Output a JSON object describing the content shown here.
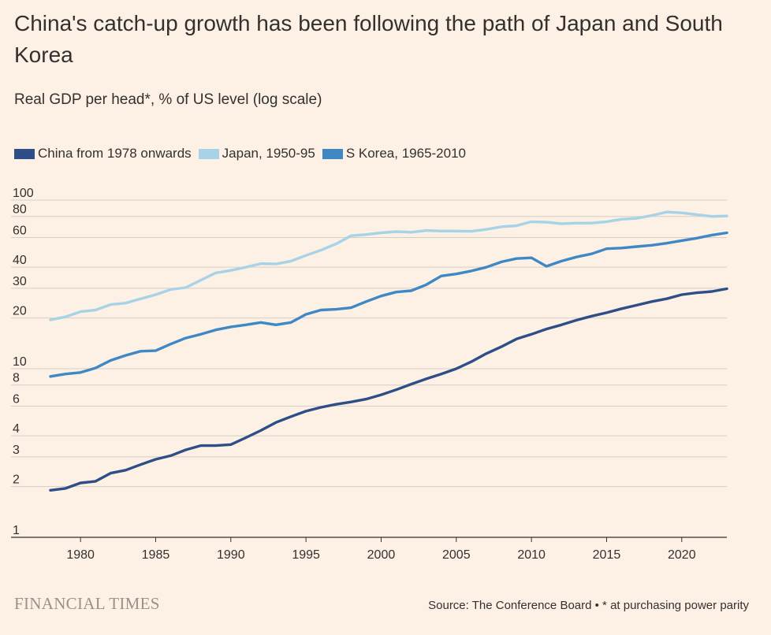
{
  "title": "China's catch-up growth has been following the path of Japan and South Korea",
  "subtitle": "Real GDP per head*, % of US level (log scale)",
  "brand": "FINANCIAL TIMES",
  "source": "Source: The Conference Board • * at purchasing power parity",
  "colors": {
    "china": "#2d4e86",
    "japan": "#a8d2e7",
    "korea": "#3f88c5",
    "grid": "#d7cec6",
    "axis": "#33302e",
    "background": "#fdf1e6"
  },
  "chart_data": {
    "type": "line",
    "xlabel": "",
    "ylabel": "Real GDP per head*, % of US level (log scale)",
    "yscale": "log",
    "xlim": [
      1978,
      2023
    ],
    "ylim": [
      1,
      100
    ],
    "grid": true,
    "legend_position": "top-left",
    "x_ticks": [
      1980,
      1985,
      1990,
      1995,
      2000,
      2005,
      2010,
      2015,
      2020
    ],
    "y_ticks": [
      1,
      2,
      3,
      4,
      6,
      8,
      10,
      20,
      30,
      40,
      60,
      80,
      100
    ],
    "x": [
      1978,
      1979,
      1980,
      1981,
      1982,
      1983,
      1984,
      1985,
      1986,
      1987,
      1988,
      1989,
      1990,
      1991,
      1992,
      1993,
      1994,
      1995,
      1996,
      1997,
      1998,
      1999,
      2000,
      2001,
      2002,
      2003,
      2004,
      2005,
      2006,
      2007,
      2008,
      2009,
      2010,
      2011,
      2012,
      2013,
      2014,
      2015,
      2016,
      2017,
      2018,
      2019,
      2020,
      2021,
      2022,
      2023
    ],
    "series": [
      {
        "key": "china",
        "name": "China from 1978 onwards",
        "values": [
          1.9,
          1.95,
          2.1,
          2.15,
          2.4,
          2.5,
          2.7,
          2.9,
          3.05,
          3.3,
          3.5,
          3.5,
          3.55,
          3.9,
          4.3,
          4.8,
          5.2,
          5.6,
          5.9,
          6.15,
          6.35,
          6.6,
          7.0,
          7.5,
          8.1,
          8.7,
          9.3,
          10.0,
          11.0,
          12.3,
          13.5,
          15.0,
          16.0,
          17.2,
          18.2,
          19.4,
          20.5,
          21.5,
          22.7,
          23.8,
          25.0,
          26.0,
          27.5,
          28.2,
          28.7,
          29.8
        ]
      },
      {
        "key": "japan",
        "name": "Japan, 1950-95",
        "values": [
          19.5,
          20.3,
          21.8,
          22.3,
          24.0,
          24.5,
          26.0,
          27.5,
          29.5,
          30.3,
          33.5,
          37.0,
          38.3,
          40.0,
          42.0,
          41.8,
          43.5,
          47.0,
          50.5,
          55.0,
          61.5,
          62.5,
          64.0,
          65.0,
          64.5,
          66.0,
          65.5,
          65.5,
          65.3,
          67.0,
          69.5,
          70.5,
          74.5,
          74.0,
          72.5,
          73.0,
          73.0,
          74.5,
          77.0,
          78.0,
          81.0,
          85.0,
          84.0,
          82.0,
          80.0,
          80.5
        ]
      },
      {
        "key": "korea",
        "name": "S Korea, 1965-2010",
        "values": [
          9.0,
          9.3,
          9.5,
          10.1,
          11.2,
          12.0,
          12.7,
          12.8,
          14.0,
          15.2,
          16.0,
          17.0,
          17.7,
          18.2,
          18.8,
          18.2,
          18.8,
          21.0,
          22.3,
          22.5,
          23.0,
          25.0,
          27.0,
          28.5,
          29.0,
          31.5,
          35.5,
          36.5,
          38.0,
          40.0,
          43.0,
          45.0,
          45.5,
          40.5,
          43.5,
          46.0,
          48.0,
          51.5,
          52.0,
          53.0,
          54.0,
          55.5,
          57.5,
          59.5,
          62.0,
          64.0
        ]
      }
    ]
  }
}
